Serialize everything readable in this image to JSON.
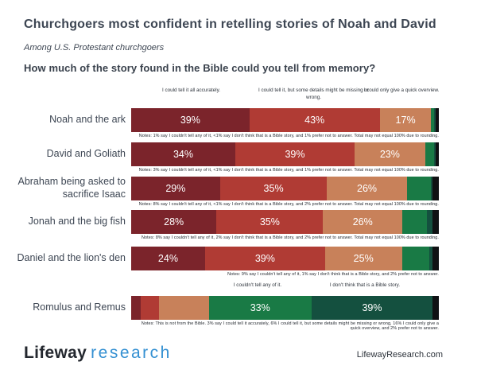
{
  "header": {
    "title": "Churchgoers most confident in retelling stories of Noah and David",
    "subtitle": "Among U.S. Protestant churchgoers",
    "question": "How much of the story found in the Bible could you tell from memory?"
  },
  "footer": {
    "logo_primary": "Lifeway",
    "logo_secondary": "research",
    "website": "LifewayResearch.com"
  },
  "chart_data": {
    "type": "bar",
    "stacked": true,
    "orientation": "horizontal",
    "unit": "%",
    "column_labels": [
      "I could tell it all accurately.",
      "I could tell it, but some details might be missing or wrong.",
      "I could only give a quick overview."
    ],
    "bottom_labels": [
      "I couldn't tell any of it.",
      "I don't think that is a Bible story."
    ],
    "segment_categories": [
      "I could tell it all accurately",
      "I could tell it, but some details might be missing or wrong",
      "I could only give a quick overview",
      "I couldn't tell any of it",
      "I don't think that is a Bible story",
      "Prefer not to answer"
    ],
    "colors": [
      "#7b242b",
      "#b03b34",
      "#c8815a",
      "#197a45",
      "#14503f",
      "#101214"
    ],
    "rows": [
      {
        "label": "Noah and the ark",
        "values": [
          39,
          43,
          17,
          1,
          0.5,
          1
        ],
        "value_labels": [
          "39%",
          "43%",
          "17%",
          "",
          "",
          ""
        ],
        "note": "Notes: 1% say I couldn't tell any of it, <1% say I don't think that is a Bible story, and 1% prefer not to answer. Total may not equal 100% due to rounding."
      },
      {
        "label": "David and Goliath",
        "values": [
          34,
          39,
          23,
          3,
          0.5,
          1
        ],
        "value_labels": [
          "34%",
          "39%",
          "23%",
          "",
          "",
          ""
        ],
        "note": "Notes: 3% say I couldn't tell any of it, <1% say I don't think that is a Bible story, and 1% prefer not to answer. Total may not equal 100% due to rounding."
      },
      {
        "label": "Abraham being asked to sacrifice Isaac",
        "values": [
          29,
          35,
          26,
          8,
          0.5,
          2
        ],
        "value_labels": [
          "29%",
          "35%",
          "26%",
          "",
          "",
          ""
        ],
        "note": "Notes: 8% say I couldn't tell any of it, <1% say I don't think that is a Bible story, and 2% prefer not to answer. Total may not equal 100% due to rounding."
      },
      {
        "label": "Jonah and the big fish",
        "values": [
          28,
          35,
          26,
          8,
          2,
          2
        ],
        "value_labels": [
          "28%",
          "35%",
          "26%",
          "",
          "",
          ""
        ],
        "note": "Notes: 8% say I couldn't tell any of it, 2% say I don't think that is a Bible story, and 2% prefer not to answer. Total may not equal 100% due to rounding."
      },
      {
        "label": "Daniel and the lion's den",
        "values": [
          24,
          39,
          25,
          9,
          1,
          2
        ],
        "value_labels": [
          "24%",
          "39%",
          "25%",
          "",
          "",
          ""
        ],
        "note": "Notes: 9% say I couldn't tell any of it, 1% say I don't think that is a Bible story, and 2% prefer not to answer."
      },
      {
        "label": "Romulus and Remus",
        "values": [
          3,
          6,
          16,
          33,
          39,
          2
        ],
        "value_labels": [
          "",
          "",
          "",
          "33%",
          "39%",
          ""
        ],
        "note": "Notes: This is not from the Bible. 3% say I could tell it accurately, 6% I could tell it, but some details might be missing or wrong, 16% I could only give a quick overview, and 2% prefer not to answer."
      }
    ]
  }
}
